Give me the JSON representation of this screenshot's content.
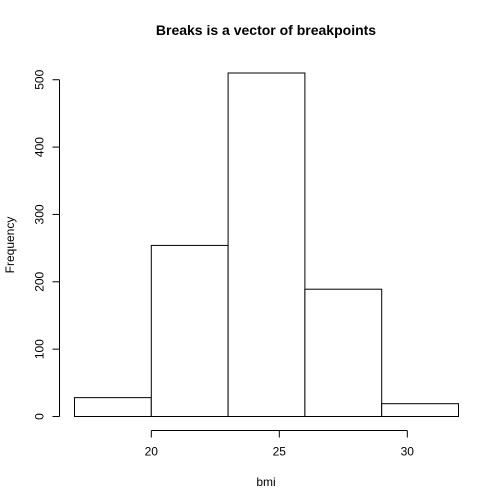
{
  "chart_data": {
    "type": "bar",
    "title": "Breaks is a vector of breakpoints",
    "xlabel": "bmi",
    "ylabel": "Frequency",
    "bins": [
      {
        "start": 17,
        "end": 20,
        "count": 28
      },
      {
        "start": 20,
        "end": 23,
        "count": 254
      },
      {
        "start": 23,
        "end": 26,
        "count": 510
      },
      {
        "start": 26,
        "end": 29,
        "count": 189
      },
      {
        "start": 29,
        "end": 32,
        "count": 19
      }
    ],
    "xticks": [
      20,
      25,
      30
    ],
    "yticks": [
      0,
      100,
      200,
      300,
      400,
      500
    ],
    "xlim": [
      17,
      32
    ],
    "ylim": [
      0,
      510
    ],
    "grid": false,
    "legend": "none"
  }
}
